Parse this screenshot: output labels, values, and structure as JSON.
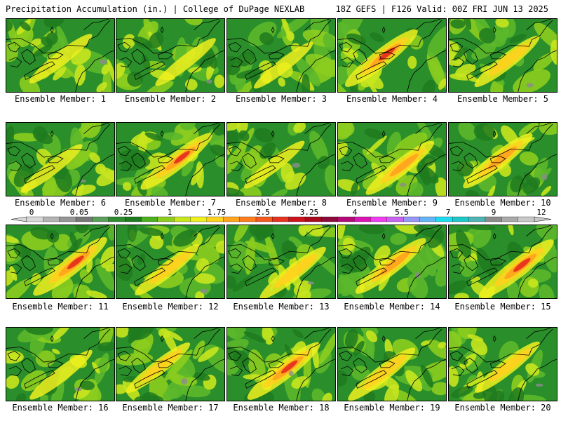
{
  "header": {
    "title": "Precipitation Accumulation (in.) | College of DuPage NEXLAB",
    "run_info": "18Z GEFS | F126 Valid: 00Z FRI JUN 13 2025"
  },
  "panels": [
    {
      "label": "Ensemble Member: 1",
      "band": 0.35
    },
    {
      "label": "Ensemble Member: 2",
      "band": 0.25
    },
    {
      "label": "Ensemble Member: 3",
      "band": 0.2
    },
    {
      "label": "Ensemble Member: 4",
      "band": 0.8
    },
    {
      "label": "Ensemble Member: 5",
      "band": 0.45
    },
    {
      "label": "Ensemble Member: 6",
      "band": 0.3
    },
    {
      "label": "Ensemble Member: 7",
      "band": 0.75
    },
    {
      "label": "Ensemble Member: 8",
      "band": 0.25
    },
    {
      "label": "Ensemble Member: 9",
      "band": 0.6
    },
    {
      "label": "Ensemble Member: 10",
      "band": 0.65
    },
    {
      "label": "Ensemble Member: 11",
      "band": 0.85
    },
    {
      "label": "Ensemble Member: 12",
      "band": 0.45
    },
    {
      "label": "Ensemble Member: 13",
      "band": 0.5
    },
    {
      "label": "Ensemble Member: 14",
      "band": 0.7
    },
    {
      "label": "Ensemble Member: 15",
      "band": 0.9
    },
    {
      "label": "Ensemble Member: 16",
      "band": 0.35
    },
    {
      "label": "Ensemble Member: 17",
      "band": 0.4
    },
    {
      "label": "Ensemble Member: 18",
      "band": 0.8
    },
    {
      "label": "Ensemble Member: 19",
      "band": 0.55
    },
    {
      "label": "Ensemble Member: 20",
      "band": 0.45
    }
  ],
  "colorbar": {
    "labels": [
      "0",
      "0.05",
      "0.25",
      "1",
      "1.75",
      "2.5",
      "3.25",
      "4",
      "5.5",
      "7",
      "9",
      "12"
    ],
    "colors": [
      "#d8d8d8",
      "#b4b4b4",
      "#969696",
      "#787878",
      "#5aa05a",
      "#2e8b2e",
      "#1f7a1f",
      "#4caf1e",
      "#8ccd1e",
      "#c8e61e",
      "#f0f01e",
      "#ffd21e",
      "#ffa51e",
      "#ff7d1e",
      "#f55a1e",
      "#e6321e",
      "#cd141e",
      "#aa0a1e",
      "#8c0a3c",
      "#b40a78",
      "#dc14b4",
      "#f03cf0",
      "#c864f0",
      "#9696f5",
      "#64b4fa",
      "#1edcf0",
      "#1ec8c8",
      "#50b4b4",
      "#8c8c8c",
      "#aaaaaa",
      "#c8c8c8"
    ]
  }
}
